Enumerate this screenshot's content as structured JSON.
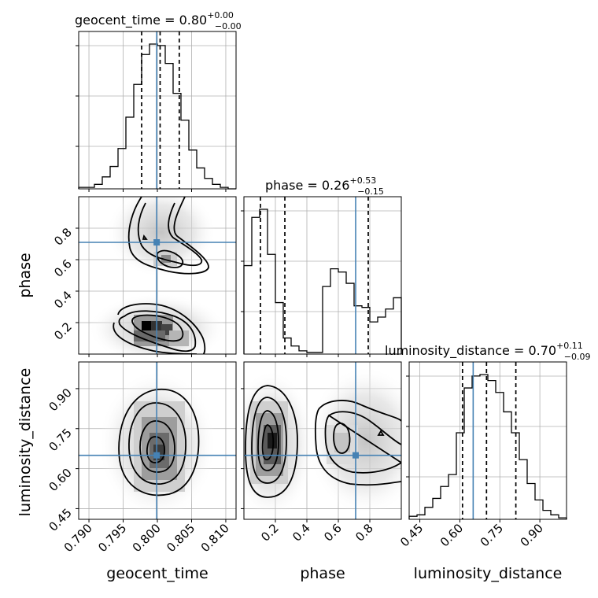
{
  "chart_data": {
    "type": "corner",
    "parameters": [
      "geocent_time",
      "phase",
      "luminosity_distance"
    ],
    "titles": [
      {
        "param": "geocent_time",
        "median": "0.80",
        "plus": "+0.00",
        "minus": "−0.00"
      },
      {
        "param": "phase",
        "median": "0.26",
        "plus": "+0.53",
        "minus": "−0.15"
      },
      {
        "param": "luminosity_distance",
        "median": "0.70",
        "plus": "+0.11",
        "minus": "−0.09"
      }
    ],
    "axis_labels": {
      "geocent_time": "geocent_time",
      "phase": "phase",
      "luminosity_distance": "luminosity_distance"
    },
    "ranges": {
      "geocent_time": [
        0.7885,
        0.8115
      ],
      "phase": [
        0.0,
        1.0
      ],
      "luminosity_distance": [
        0.41,
        1.0
      ]
    },
    "ticks": {
      "geocent_time": [
        "0.790",
        "0.795",
        "0.800",
        "0.805",
        "0.810"
      ],
      "phase_x": [
        "0.2",
        "0.4",
        "0.6",
        "0.8"
      ],
      "phase_y": [
        "0.2",
        "0.4",
        "0.6",
        "0.8"
      ],
      "luminosity_distance": [
        "0.45",
        "0.60",
        "0.75",
        "0.90"
      ]
    },
    "truths": {
      "geocent_time": 0.7999,
      "phase": 0.71,
      "luminosity_distance": 0.65
    },
    "quantiles": {
      "geocent_time": [
        0.7977,
        0.8004,
        0.8032
      ],
      "phase": [
        0.105,
        0.26,
        0.79
      ],
      "luminosity_distance": [
        0.61,
        0.7,
        0.81
      ]
    },
    "histograms": {
      "geocent_time": {
        "edges_start": 0.7885,
        "edges_end": 0.8115,
        "counts": [
          1,
          1,
          3,
          8,
          15,
          27,
          48,
          70,
          90,
          97,
          96,
          84,
          64,
          46,
          26,
          14,
          7,
          3,
          1,
          0
        ]
      },
      "phase": {
        "edges_start": 0.0,
        "edges_end": 1.0,
        "counts": [
          55,
          85,
          90,
          62,
          32,
          10,
          5,
          2,
          1,
          1,
          42,
          53,
          51,
          44,
          30,
          29,
          20,
          23,
          28,
          35
        ]
      },
      "luminosity_distance": {
        "edges_start": 0.41,
        "edges_end": 1.0,
        "counts": [
          2,
          3,
          8,
          14,
          22,
          30,
          58,
          88,
          96,
          97,
          93,
          85,
          72,
          58,
          40,
          24,
          13,
          6,
          3,
          1
        ]
      }
    }
  }
}
